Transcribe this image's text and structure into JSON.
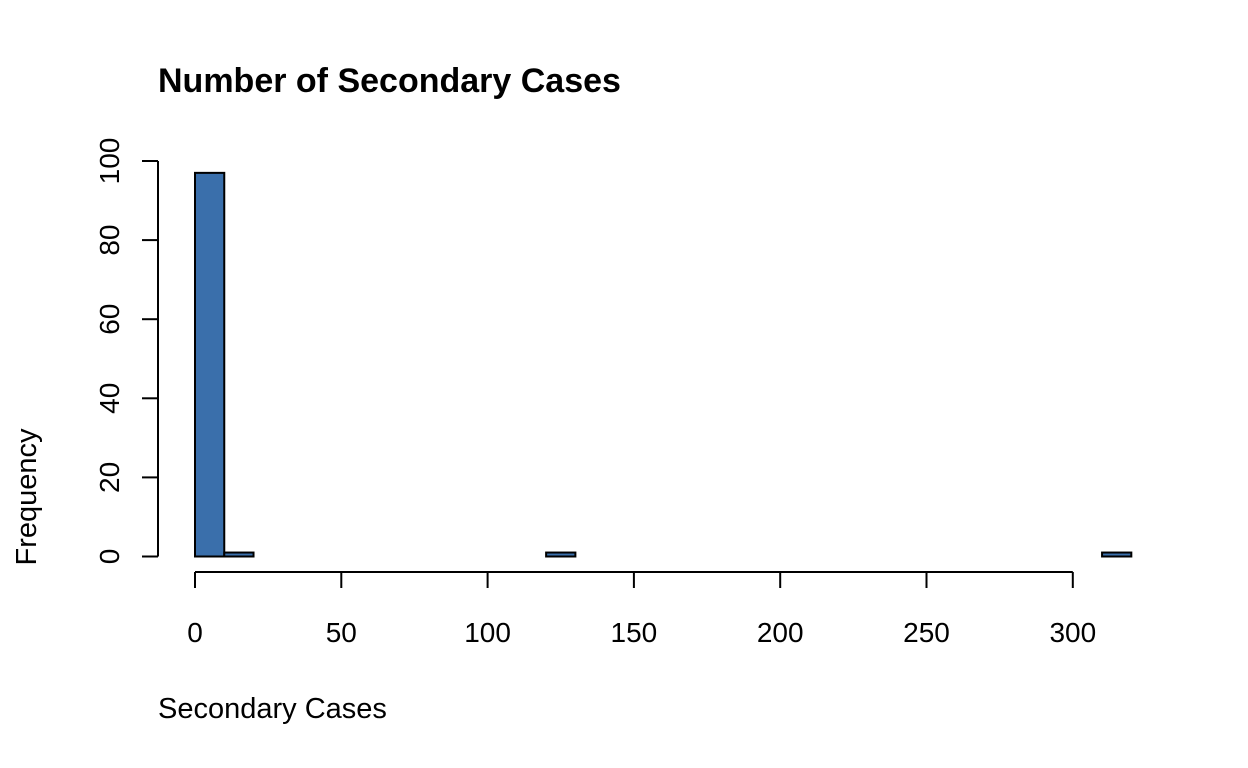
{
  "chart_data": {
    "type": "bar",
    "title": "Number of Secondary Cases",
    "xlabel": "Secondary Cases",
    "ylabel": "Frequency",
    "bin_width": 10,
    "bins": [
      {
        "x0": 0,
        "x1": 10,
        "count": 97
      },
      {
        "x0": 10,
        "x1": 20,
        "count": 1
      },
      {
        "x0": 20,
        "x1": 30,
        "count": 0
      },
      {
        "x0": 30,
        "x1": 40,
        "count": 0
      },
      {
        "x0": 40,
        "x1": 50,
        "count": 0
      },
      {
        "x0": 50,
        "x1": 60,
        "count": 0
      },
      {
        "x0": 60,
        "x1": 70,
        "count": 0
      },
      {
        "x0": 70,
        "x1": 80,
        "count": 0
      },
      {
        "x0": 80,
        "x1": 90,
        "count": 0
      },
      {
        "x0": 90,
        "x1": 100,
        "count": 0
      },
      {
        "x0": 100,
        "x1": 110,
        "count": 0
      },
      {
        "x0": 110,
        "x1": 120,
        "count": 0
      },
      {
        "x0": 120,
        "x1": 130,
        "count": 1
      },
      {
        "x0": 130,
        "x1": 140,
        "count": 0
      },
      {
        "x0": 140,
        "x1": 150,
        "count": 0
      },
      {
        "x0": 150,
        "x1": 160,
        "count": 0
      },
      {
        "x0": 160,
        "x1": 170,
        "count": 0
      },
      {
        "x0": 170,
        "x1": 180,
        "count": 0
      },
      {
        "x0": 180,
        "x1": 190,
        "count": 0
      },
      {
        "x0": 190,
        "x1": 200,
        "count": 0
      },
      {
        "x0": 200,
        "x1": 210,
        "count": 0
      },
      {
        "x0": 210,
        "x1": 220,
        "count": 0
      },
      {
        "x0": 220,
        "x1": 230,
        "count": 0
      },
      {
        "x0": 230,
        "x1": 240,
        "count": 0
      },
      {
        "x0": 240,
        "x1": 250,
        "count": 0
      },
      {
        "x0": 250,
        "x1": 260,
        "count": 0
      },
      {
        "x0": 260,
        "x1": 270,
        "count": 0
      },
      {
        "x0": 270,
        "x1": 280,
        "count": 0
      },
      {
        "x0": 280,
        "x1": 290,
        "count": 0
      },
      {
        "x0": 290,
        "x1": 300,
        "count": 0
      },
      {
        "x0": 300,
        "x1": 310,
        "count": 0
      },
      {
        "x0": 310,
        "x1": 320,
        "count": 1
      }
    ],
    "xlim": [
      0,
      320
    ],
    "ylim": [
      0,
      100
    ],
    "x_ticks": [
      0,
      50,
      100,
      150,
      200,
      250,
      300
    ],
    "y_ticks": [
      0,
      20,
      40,
      60,
      80,
      100
    ],
    "bar_color": "#3a6fab",
    "grid": false
  }
}
